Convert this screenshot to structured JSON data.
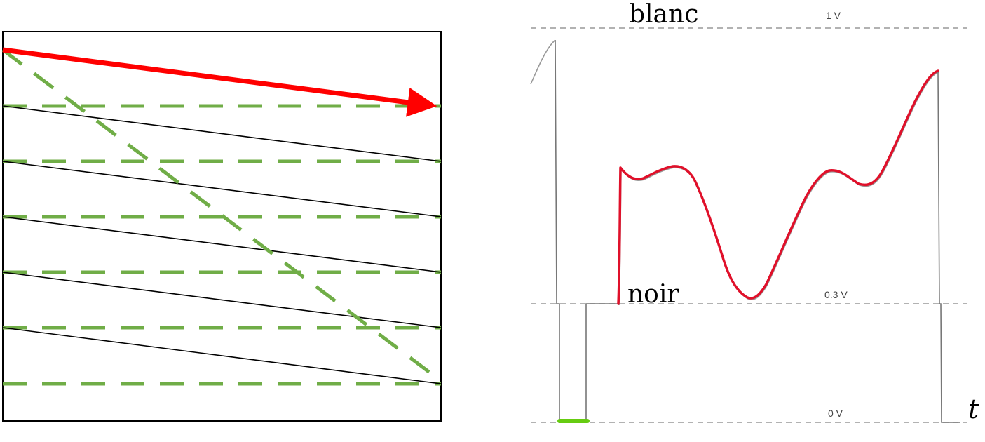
{
  "diagram": {
    "raster_scan": {
      "num_dashed_lines": 6,
      "num_solid_scan_lines": 5
    },
    "video_signal": {
      "levels": {
        "white": {
          "label": "blanc",
          "voltage": "1 V"
        },
        "black": {
          "label": "noir",
          "voltage": "0.3 V"
        },
        "zero": {
          "voltage": "0 V"
        }
      },
      "time_axis_label": "t"
    }
  },
  "colors": {
    "scan_arrow": "#ff0000",
    "dashed_line": "#70ad47",
    "signal": "#e0102a",
    "sync_pulse": "#66cc11",
    "reference_line": "#999999",
    "waveform_gray": "#999999",
    "frame": "#000000"
  }
}
